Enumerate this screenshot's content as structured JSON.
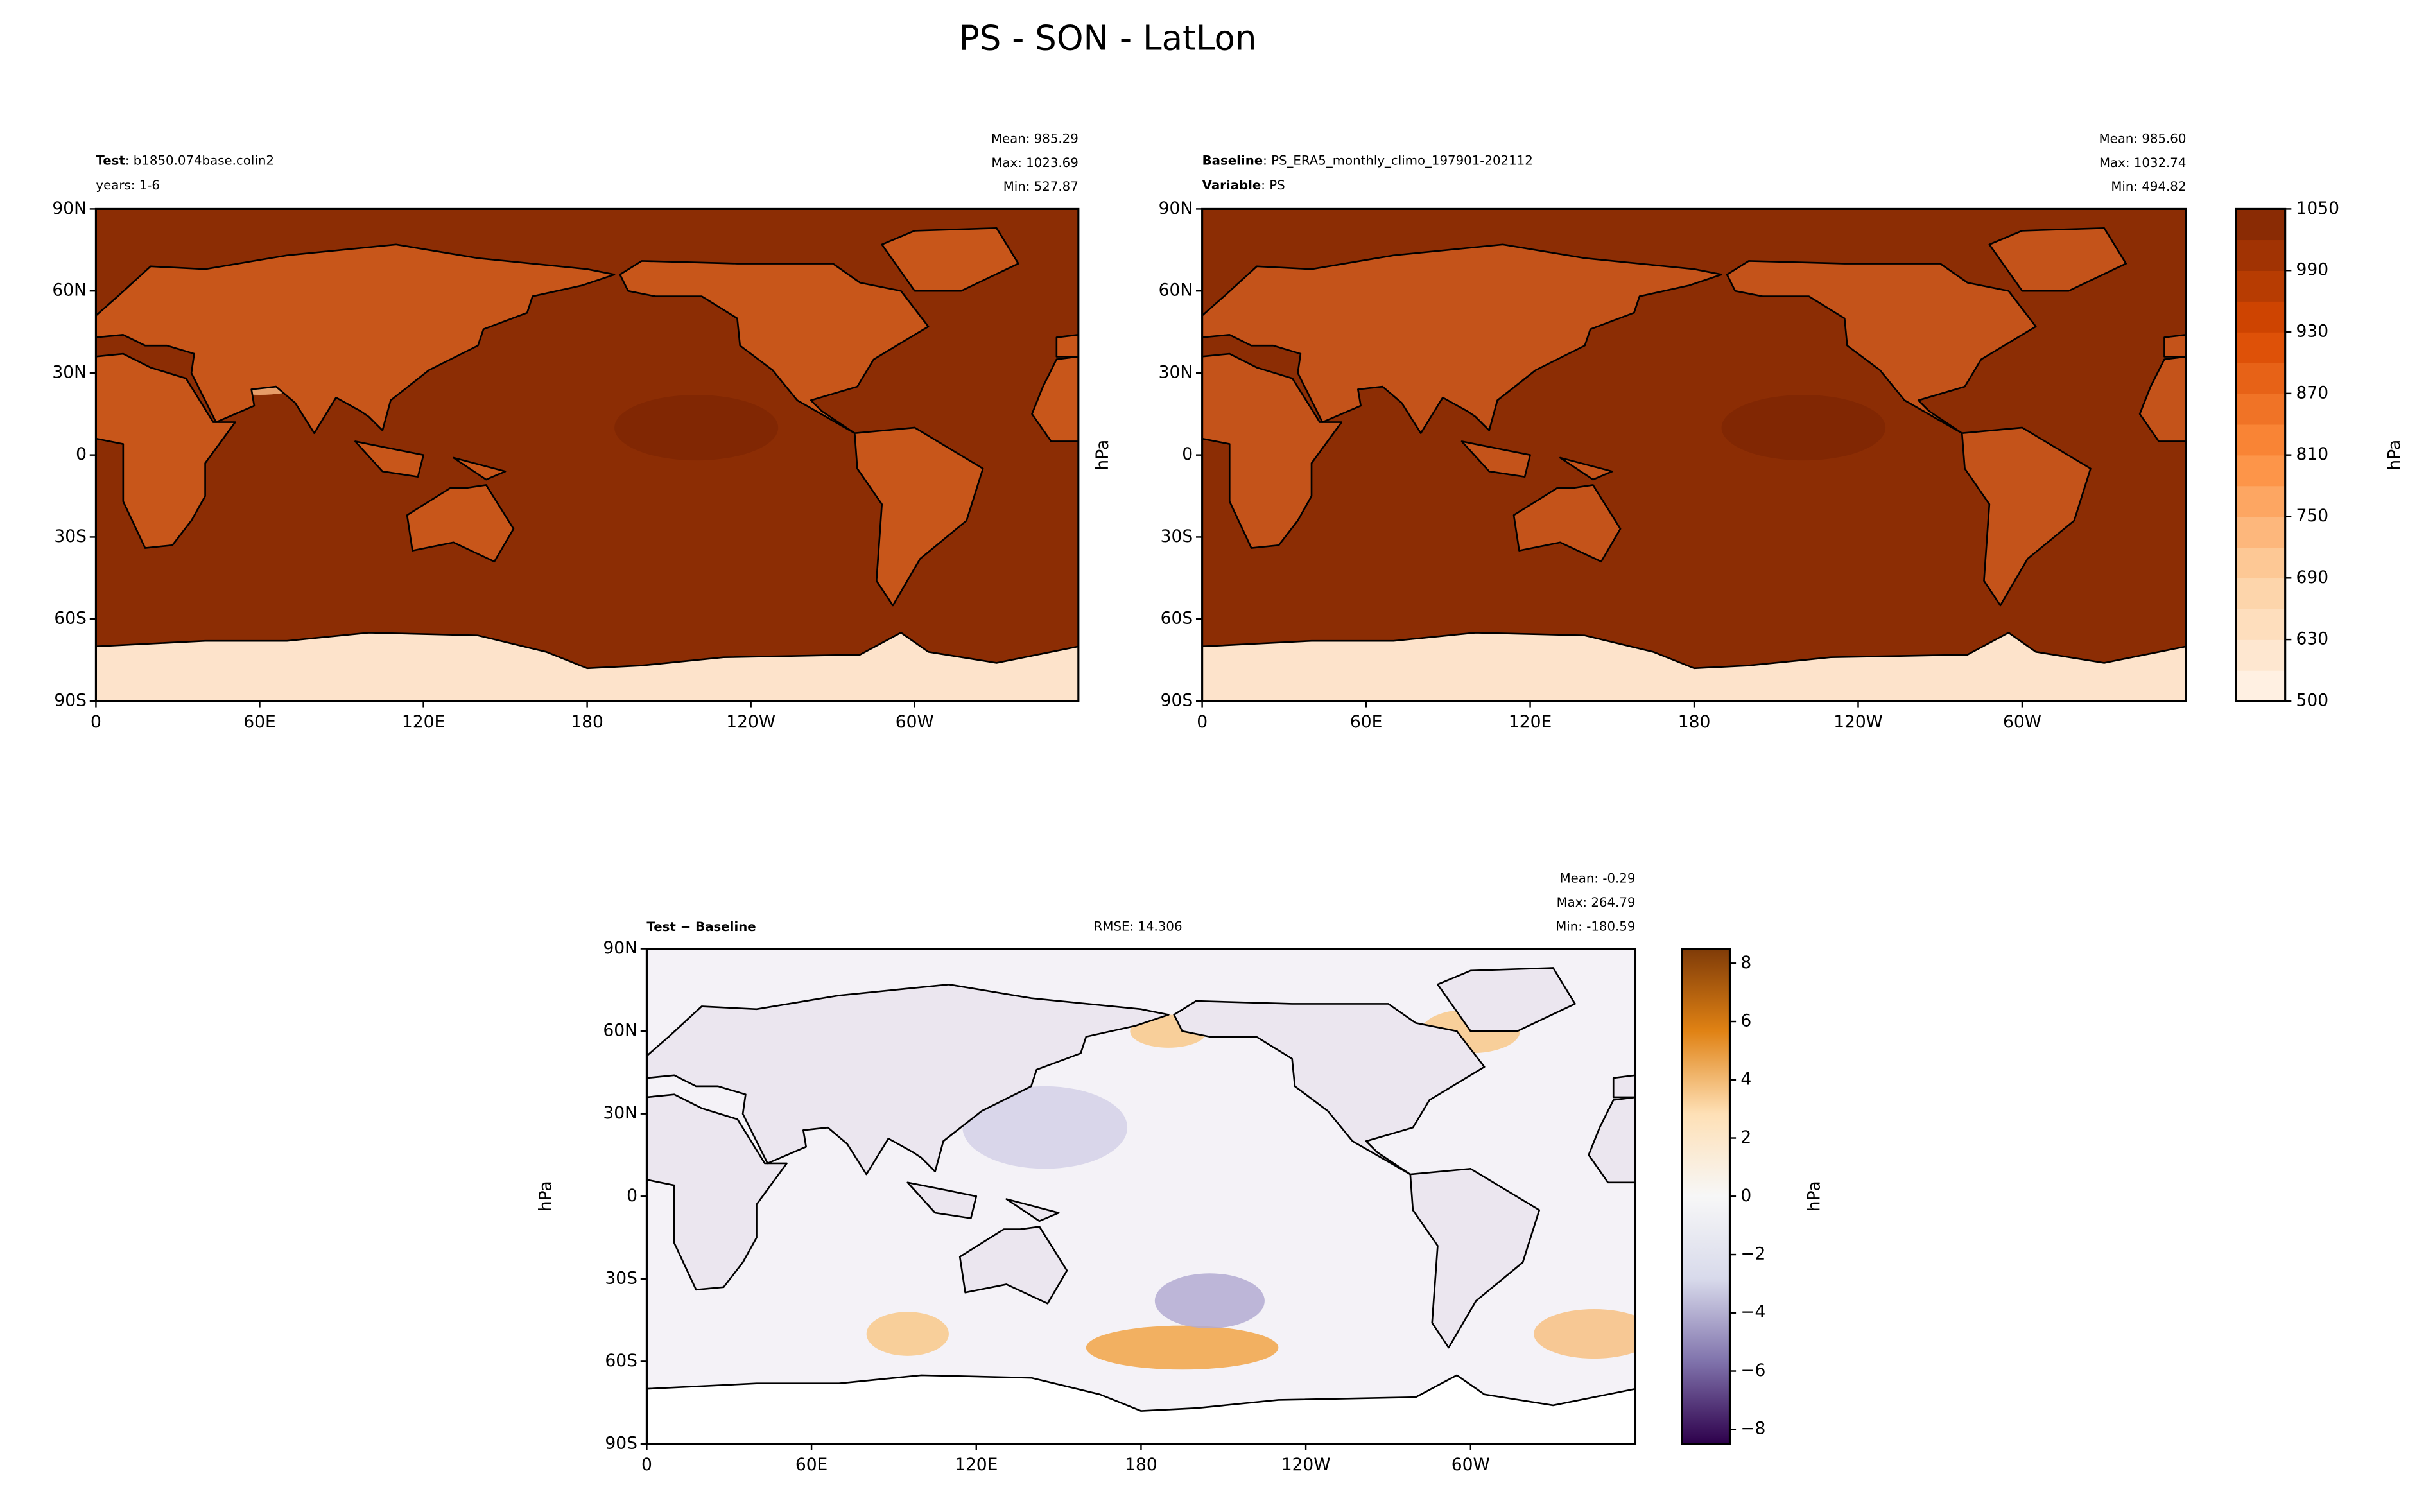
{
  "suptitle": "PS - SON - LatLon",
  "chart_data": [
    {
      "type": "contour",
      "lines": [
        {
          "bold": "Test",
          "text": ": b1850.074base.colin2"
        },
        {
          "text": "years: 1-6"
        }
      ],
      "stats": [
        "Mean: 985.29",
        "Max: 1023.69",
        "Min: 527.87"
      ],
      "xlim": [
        0,
        360
      ],
      "xticks": [
        0,
        {
          "value": 60,
          "label": "60E"
        },
        {
          "value": 120,
          "label": "120E"
        },
        180,
        {
          "value": 240,
          "label": "120W"
        },
        {
          "value": 300,
          "label": "60W"
        }
      ],
      "ylim": [
        -90,
        90
      ],
      "yticks": [
        {
          "value": 90,
          "label": "90N"
        },
        {
          "value": 60,
          "label": "60N"
        },
        {
          "value": 30,
          "label": "30N"
        },
        0,
        {
          "value": -30,
          "label": "30S"
        },
        {
          "value": -60,
          "label": "60S"
        },
        {
          "value": -90,
          "label": "90S"
        }
      ]
    },
    {
      "type": "contour",
      "lines": [
        {
          "bold": "Baseline",
          "text": ": PS_ERA5_monthly_climo_197901-202112"
        },
        {
          "bold": "Variable",
          "text": ": PS"
        }
      ],
      "stats": [
        "Mean: 985.60",
        "Max: 1032.74",
        "Min: 494.82"
      ],
      "ylabel": "hPa",
      "xlim": [
        0,
        360
      ],
      "xticks": [
        0,
        {
          "value": 60,
          "label": "60E"
        },
        {
          "value": 120,
          "label": "120E"
        },
        180,
        {
          "value": 240,
          "label": "120W"
        },
        {
          "value": 300,
          "label": "60W"
        }
      ],
      "ylim": [
        -90,
        90
      ],
      "yticks": [
        {
          "value": 90,
          "label": "90N"
        },
        {
          "value": 60,
          "label": "60N"
        },
        {
          "value": 30,
          "label": "30N"
        },
        0,
        {
          "value": -30,
          "label": "30S"
        },
        {
          "value": -60,
          "label": "60S"
        },
        {
          "value": -90,
          "label": "90S"
        }
      ],
      "colorbar": {
        "label": "hPa",
        "levels": [
          500,
          600,
          630,
          660,
          690,
          720,
          750,
          780,
          810,
          840,
          870,
          900,
          930,
          960,
          990,
          1020,
          1050
        ],
        "ticks": [
          500,
          630,
          690,
          750,
          810,
          870,
          930,
          990,
          1050
        ],
        "cmap": [
          "#fff5eb",
          "#fdd0a2",
          "#fd8d3c",
          "#d94801",
          "#7f2704"
        ]
      }
    },
    {
      "type": "contour",
      "lines": [
        {
          "bold": "Test − Baseline"
        }
      ],
      "rmse": "RMSE: 14.306",
      "stats": [
        "Mean: -0.29",
        "Max: 264.79",
        "Min: -180.59"
      ],
      "ylabel": "hPa",
      "xlim": [
        0,
        360
      ],
      "xticks": [
        0,
        {
          "value": 60,
          "label": "60E"
        },
        {
          "value": 120,
          "label": "120E"
        },
        180,
        {
          "value": 240,
          "label": "120W"
        },
        {
          "value": 300,
          "label": "60W"
        }
      ],
      "ylim": [
        -90,
        90
      ],
      "yticks": [
        {
          "value": 90,
          "label": "90N"
        },
        {
          "value": 60,
          "label": "60N"
        },
        {
          "value": 30,
          "label": "30N"
        },
        0,
        {
          "value": -30,
          "label": "30S"
        },
        {
          "value": -60,
          "label": "60S"
        },
        {
          "value": -90,
          "label": "90S"
        }
      ],
      "colorbar": {
        "label": "hPa",
        "lim": [
          -8.5,
          8.5
        ],
        "ticks": [
          {
            "value": -8,
            "label": "−8"
          },
          {
            "value": -6,
            "label": "−6"
          },
          {
            "value": -4,
            "label": "−4"
          },
          {
            "value": -2,
            "label": "−2"
          },
          0,
          2,
          4,
          6,
          8
        ],
        "cmap": [
          "#2d004b",
          "#8073ac",
          "#d8daeb",
          "#f7f7f7",
          "#fee0b6",
          "#e08214",
          "#7f3b08"
        ]
      }
    }
  ]
}
